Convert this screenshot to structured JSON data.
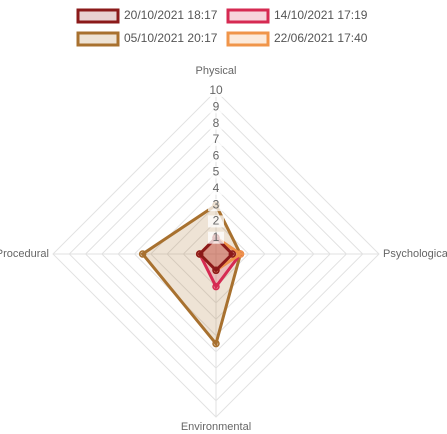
{
  "chart_data": {
    "type": "radar",
    "categories": [
      "Physical",
      "Psychological",
      "Environmental",
      "Procedural"
    ],
    "rlim": [
      0,
      10
    ],
    "rticks": [
      1,
      2,
      3,
      4,
      5,
      6,
      7,
      8,
      9,
      10
    ],
    "grid": true,
    "series": [
      {
        "name": "20/10/2021 18:17",
        "color": "#8b1a1a",
        "values": [
          1,
          1,
          1,
          1
        ]
      },
      {
        "name": "14/10/2021 17:19",
        "color": "#d62a52",
        "values": [
          1,
          1.5,
          2,
          1
        ]
      },
      {
        "name": "05/10/2021 20:17",
        "color": "#a8712f",
        "values": [
          3,
          1.5,
          5.5,
          4.5
        ]
      },
      {
        "name": "22/06/2021 17:40",
        "color": "#f0954a",
        "values": [
          1,
          1.5,
          1,
          1
        ]
      }
    ]
  }
}
